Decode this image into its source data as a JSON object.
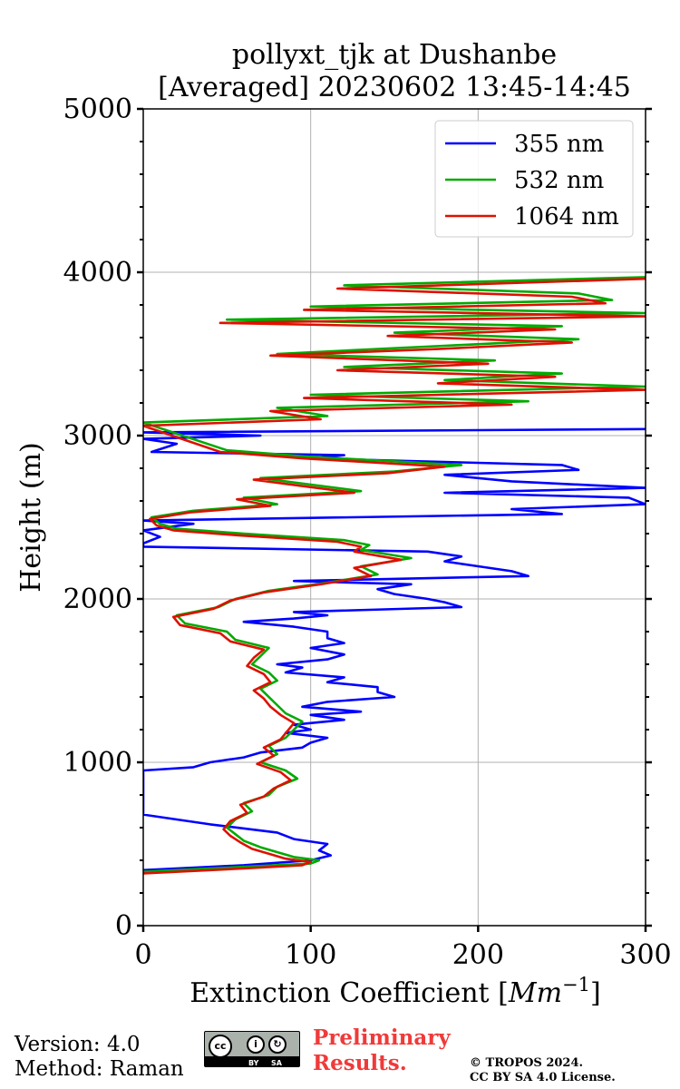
{
  "chart_data": {
    "type": "line",
    "title": "pollyxt_tjk at Dushanbe",
    "subtitle": "[Averaged] 20230602 13:45-14:45",
    "xlabel": "Extinction Coefficient",
    "xlabel_unit_base": "Mm",
    "xlabel_unit_exp": "−1",
    "ylabel": "Height (m)",
    "xlim": [
      0,
      300
    ],
    "ylim": [
      0,
      5000
    ],
    "xticks": [
      0,
      100,
      200,
      300
    ],
    "yticks": [
      0,
      1000,
      2000,
      3000,
      4000,
      5000
    ],
    "grid": true,
    "legend_position": "top-right",
    "series": [
      {
        "name": "355 nm",
        "color": "#0000ff",
        "height": [
          340,
          370,
          400,
          430,
          460,
          500,
          530,
          570,
          620,
          650,
          680,
          950,
          970,
          1000,
          1030,
          1060,
          1090,
          1120,
          1150,
          1180,
          1200,
          1230,
          1260,
          1290,
          1310,
          1340,
          1370,
          1400,
          1430,
          1460,
          1490,
          1520,
          1550,
          1580,
          1600,
          1630,
          1660,
          1700,
          1730,
          1760,
          1800,
          1830,
          1860,
          1880,
          1900,
          1920,
          1950,
          1980,
          2000,
          2030,
          2060,
          2090,
          2110,
          2140,
          2170,
          2200,
          2230,
          2260,
          2290,
          2320,
          2340,
          2380,
          2420,
          2460,
          2480,
          2520,
          2550,
          2580,
          2620,
          2650,
          2680,
          2720,
          2760,
          2790,
          2820,
          2860,
          2880,
          2900,
          2950,
          2980,
          3000,
          3020,
          3040
        ],
        "values": [
          0,
          60,
          100,
          112,
          105,
          110,
          90,
          80,
          40,
          20,
          0,
          0,
          30,
          40,
          60,
          70,
          95,
          100,
          110,
          85,
          100,
          90,
          120,
          100,
          130,
          95,
          110,
          150,
          140,
          140,
          110,
          120,
          85,
          95,
          80,
          110,
          120,
          100,
          120,
          110,
          110,
          90,
          60,
          90,
          110,
          90,
          190,
          180,
          170,
          150,
          140,
          160,
          90,
          230,
          220,
          200,
          180,
          190,
          170,
          0,
          0,
          10,
          0,
          30,
          0,
          250,
          220,
          300,
          290,
          180,
          300,
          220,
          180,
          260,
          250,
          100,
          120,
          5,
          20,
          0,
          70,
          0,
          300
        ]
      },
      {
        "name": "532 nm",
        "color": "#00aa00",
        "height": [
          330,
          360,
          380,
          400,
          420,
          450,
          480,
          520,
          560,
          600,
          650,
          700,
          750,
          800,
          850,
          900,
          950,
          1000,
          1050,
          1100,
          1150,
          1200,
          1250,
          1300,
          1350,
          1400,
          1450,
          1500,
          1550,
          1600,
          1650,
          1700,
          1750,
          1800,
          1850,
          1900,
          1950,
          2000,
          2050,
          2100,
          2150,
          2200,
          2250,
          2300,
          2330,
          2360,
          2400,
          2430,
          2460,
          2500,
          2540,
          2580,
          2620,
          2660,
          2700,
          2740,
          2780,
          2820,
          2870,
          2910,
          3080,
          3120,
          3170,
          3210,
          3250,
          3300,
          3340,
          3380,
          3420,
          3460,
          3500,
          3550,
          3590,
          3630,
          3670,
          3710,
          3750,
          3790,
          3830,
          3870,
          3920,
          3970
        ],
        "values": [
          0,
          60,
          100,
          105,
          90,
          80,
          70,
          60,
          55,
          50,
          55,
          65,
          60,
          75,
          80,
          92,
          85,
          70,
          80,
          75,
          85,
          90,
          95,
          85,
          80,
          75,
          70,
          80,
          75,
          65,
          70,
          75,
          55,
          50,
          25,
          20,
          45,
          55,
          75,
          110,
          140,
          130,
          160,
          130,
          135,
          120,
          60,
          20,
          10,
          5,
          30,
          80,
          60,
          130,
          100,
          70,
          150,
          190,
          100,
          50,
          0,
          110,
          80,
          230,
          100,
          300,
          180,
          250,
          120,
          210,
          80,
          180,
          260,
          150,
          250,
          50,
          300,
          100,
          280,
          260,
          120,
          300
        ]
      },
      {
        "name": "1064 nm",
        "color": "#dd1100",
        "height": [
          320,
          350,
          370,
          390,
          410,
          440,
          470,
          510,
          550,
          590,
          640,
          690,
          740,
          790,
          840,
          890,
          940,
          990,
          1040,
          1090,
          1140,
          1190,
          1240,
          1290,
          1340,
          1390,
          1440,
          1490,
          1540,
          1590,
          1640,
          1690,
          1740,
          1790,
          1840,
          1890,
          1940,
          1990,
          2040,
          2090,
          2140,
          2190,
          2240,
          2290,
          2320,
          2350,
          2390,
          2420,
          2450,
          2490,
          2530,
          2570,
          2610,
          2650,
          2690,
          2730,
          2770,
          2810,
          2860,
          2900,
          3060,
          3100,
          3150,
          3190,
          3230,
          3280,
          3320,
          3360,
          3400,
          3440,
          3490,
          3530,
          3570,
          3610,
          3650,
          3690,
          3730,
          3770,
          3810,
          3850,
          3900,
          3960
        ],
        "values": [
          0,
          60,
          95,
          100,
          85,
          75,
          65,
          58,
          52,
          48,
          52,
          62,
          58,
          72,
          78,
          88,
          82,
          68,
          78,
          72,
          82,
          86,
          90,
          82,
          76,
          72,
          66,
          76,
          72,
          62,
          66,
          72,
          52,
          46,
          22,
          18,
          42,
          52,
          72,
          106,
          136,
          126,
          154,
          126,
          130,
          116,
          56,
          18,
          8,
          4,
          28,
          76,
          56,
          126,
          96,
          66,
          146,
          180,
          96,
          46,
          0,
          106,
          76,
          220,
          96,
          300,
          176,
          246,
          116,
          206,
          76,
          176,
          256,
          146,
          246,
          46,
          300,
          96,
          276,
          256,
          116,
          300
        ]
      }
    ]
  },
  "footer": {
    "version": "Version: 4.0",
    "method": "Method: Raman",
    "preliminary_line1": "Preliminary",
    "preliminary_line2": "Results.",
    "copyright_line1": "© TROPOS 2024.",
    "copyright_line2": "CC BY SA 4.0 License.",
    "cc_badge_text": [
      "cc",
      "BY",
      "SA"
    ]
  }
}
